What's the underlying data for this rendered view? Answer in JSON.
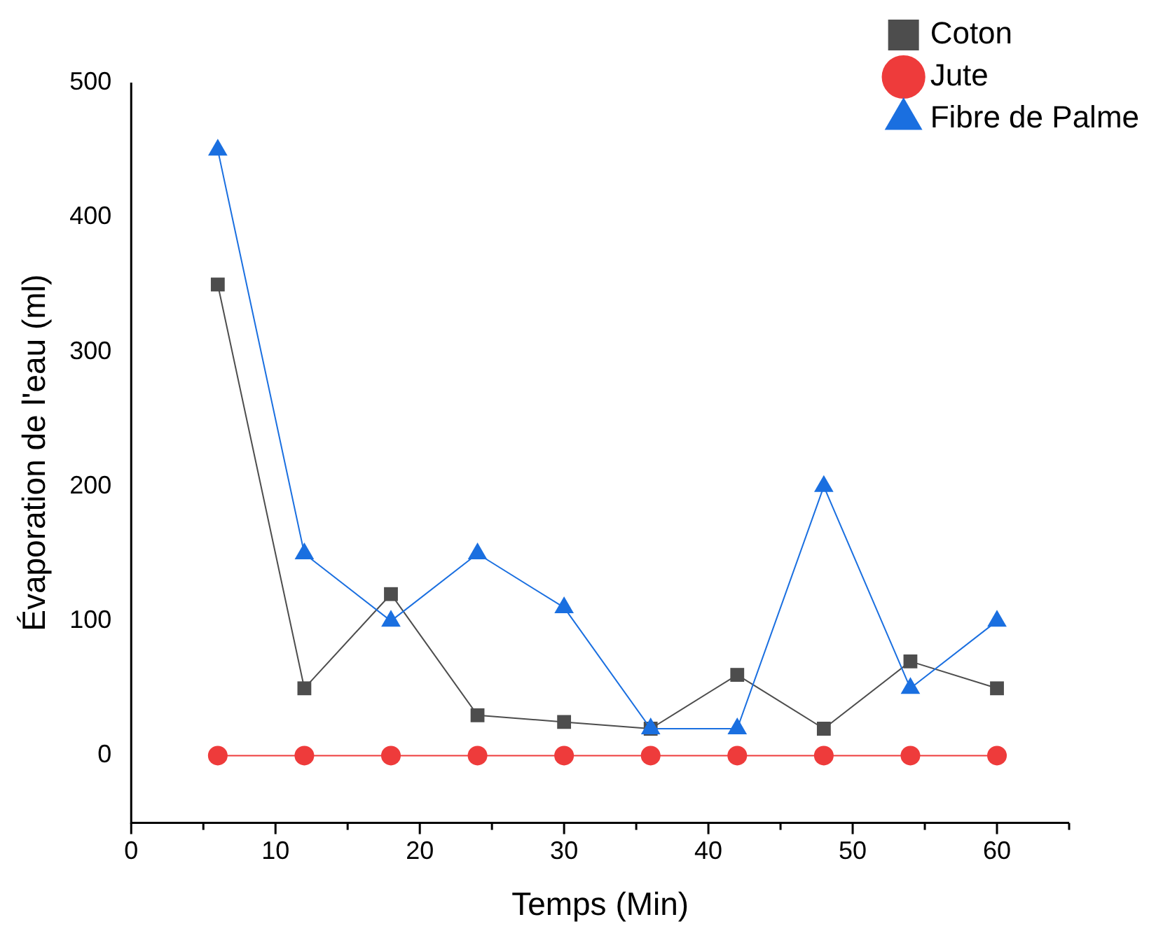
{
  "chart_data": {
    "type": "line",
    "xlabel": "Temps (Min)",
    "ylabel": "Évaporation de l'eau (ml)",
    "x": [
      6,
      12,
      18,
      24,
      30,
      36,
      42,
      48,
      54,
      60
    ],
    "series": [
      {
        "name": "Coton",
        "color": "#4d4d4d",
        "marker": "square",
        "values": [
          350,
          50,
          120,
          30,
          25,
          20,
          60,
          20,
          70,
          50
        ]
      },
      {
        "name": "Jute",
        "color": "#ee3b3b",
        "marker": "circle",
        "values": [
          0,
          0,
          0,
          0,
          0,
          0,
          0,
          0,
          0,
          0
        ]
      },
      {
        "name": "Fibre de Palme",
        "color": "#1a6fe0",
        "marker": "triangle",
        "values": [
          450,
          150,
          100,
          150,
          110,
          20,
          20,
          200,
          50,
          100
        ]
      }
    ],
    "xlim": [
      0,
      65
    ],
    "xticks": [
      0,
      10,
      20,
      30,
      40,
      50,
      60
    ],
    "ylim": [
      -50,
      500
    ],
    "yticks": [
      0,
      100,
      200,
      300,
      400,
      500
    ],
    "grid": false,
    "legend": "top right"
  }
}
